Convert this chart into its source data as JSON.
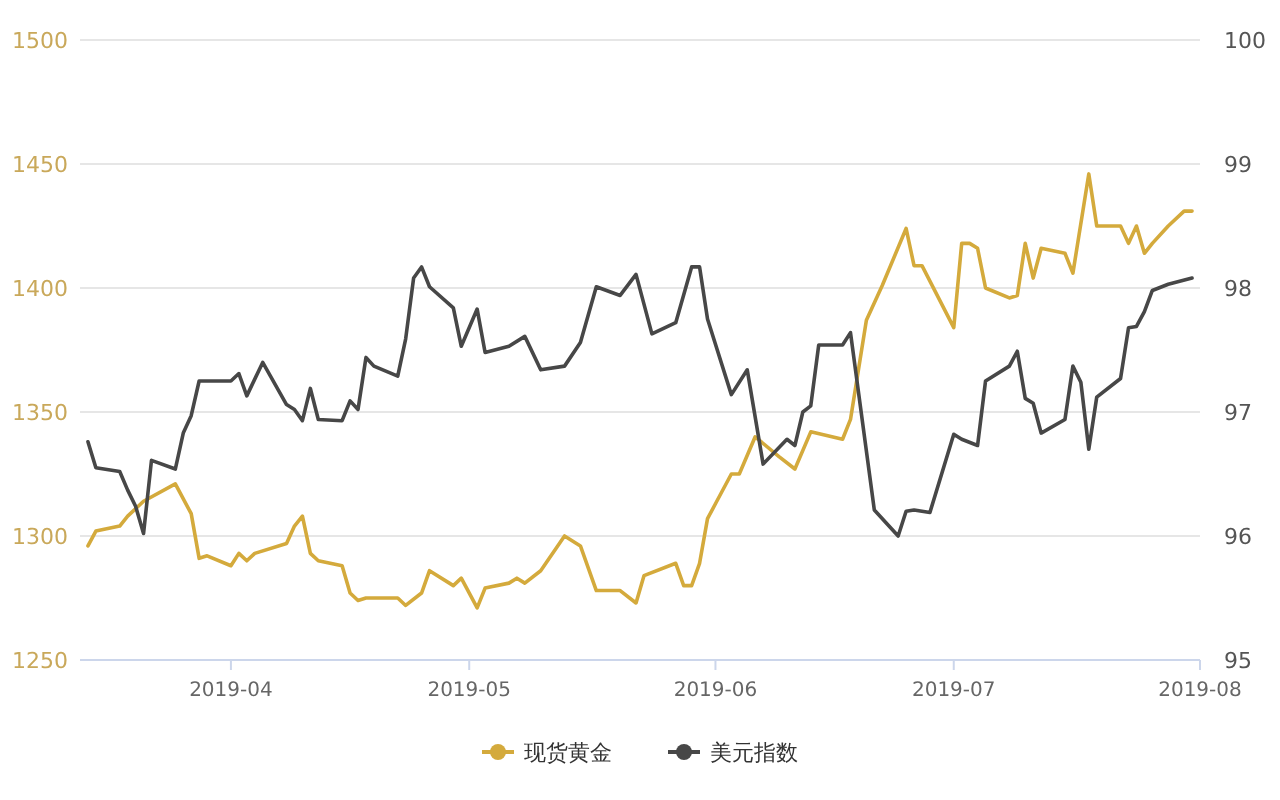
{
  "chart_data": {
    "type": "line",
    "xlim": [
      "2019-03-13",
      "2019-08-01"
    ],
    "xticks": [
      {
        "value": "2019-04-01",
        "label": "2019-04"
      },
      {
        "value": "2019-05-01",
        "label": "2019-05"
      },
      {
        "value": "2019-06-01",
        "label": "2019-06"
      },
      {
        "value": "2019-07-01",
        "label": "2019-07"
      },
      {
        "value": "2019-08-01",
        "label": "2019-08"
      }
    ],
    "ylim": [
      1250,
      1500
    ],
    "yticks": [
      1250,
      1300,
      1350,
      1400,
      1450,
      1500
    ],
    "y2lim": [
      95,
      100
    ],
    "y2ticks": [
      95,
      96,
      97,
      98,
      99,
      100
    ],
    "grid": "y",
    "legend": "bottom",
    "series": [
      {
        "name": "现货黄金",
        "color": "#d4aa3c",
        "x": [
          "2019-03-14",
          "2019-03-15",
          "2019-03-18",
          "2019-03-19",
          "2019-03-21",
          "2019-03-25",
          "2019-03-27",
          "2019-03-28",
          "2019-03-29",
          "2019-04-01",
          "2019-04-02",
          "2019-04-03",
          "2019-04-04",
          "2019-04-08",
          "2019-04-09",
          "2019-04-10",
          "2019-04-11",
          "2019-04-12",
          "2019-04-15",
          "2019-04-16",
          "2019-04-17",
          "2019-04-18",
          "2019-04-22",
          "2019-04-23",
          "2019-04-25",
          "2019-04-26",
          "2019-04-29",
          "2019-04-30",
          "2019-05-02",
          "2019-05-03",
          "2019-05-06",
          "2019-05-07",
          "2019-05-08",
          "2019-05-10",
          "2019-05-13",
          "2019-05-15",
          "2019-05-17",
          "2019-05-20",
          "2019-05-22",
          "2019-05-23",
          "2019-05-27",
          "2019-05-28",
          "2019-05-29",
          "2019-05-30",
          "2019-05-31",
          "2019-06-01",
          "2019-06-03",
          "2019-06-04",
          "2019-06-06",
          "2019-06-09",
          "2019-06-11",
          "2019-06-13",
          "2019-06-17",
          "2019-06-18",
          "2019-06-20",
          "2019-06-22",
          "2019-06-25",
          "2019-06-26",
          "2019-06-27",
          "2019-07-01",
          "2019-07-02",
          "2019-07-03",
          "2019-07-04",
          "2019-07-05",
          "2019-07-08",
          "2019-07-09",
          "2019-07-10",
          "2019-07-11",
          "2019-07-12",
          "2019-07-15",
          "2019-07-16",
          "2019-07-18",
          "2019-07-19",
          "2019-07-22",
          "2019-07-23",
          "2019-07-24",
          "2019-07-25",
          "2019-07-26",
          "2019-07-28",
          "2019-07-30",
          "2019-07-31"
        ],
        "values": [
          1296,
          1302,
          1304,
          1308,
          1314,
          1321,
          1309,
          1291,
          1292,
          1288,
          1293,
          1290,
          1293,
          1297,
          1304,
          1308,
          1293,
          1290,
          1288,
          1277,
          1274,
          1275,
          1275,
          1272,
          1277,
          1286,
          1280,
          1283,
          1271,
          1279,
          1281,
          1283,
          1281,
          1286,
          1300,
          1296,
          1278,
          1278,
          1273,
          1284,
          1289,
          1280,
          1280,
          1289,
          1307,
          1313,
          1325,
          1325,
          1340,
          1332,
          1327,
          1342,
          1339,
          1347,
          1387,
          1401,
          1424,
          1409,
          1409,
          1384,
          1418,
          1418,
          1416,
          1400,
          1396,
          1397,
          1418,
          1404,
          1416,
          1414,
          1406,
          1446,
          1425,
          1425,
          1418,
          1425,
          1414,
          1418,
          1425,
          1431,
          1431
        ]
      },
      {
        "name": "美元指数",
        "color": "#474747",
        "axis": "y2",
        "x": [
          "2019-03-14",
          "2019-03-15",
          "2019-03-18",
          "2019-03-19",
          "2019-03-20",
          "2019-03-21",
          "2019-03-22",
          "2019-03-25",
          "2019-03-26",
          "2019-03-27",
          "2019-03-28",
          "2019-04-01",
          "2019-04-02",
          "2019-04-03",
          "2019-04-05",
          "2019-04-08",
          "2019-04-09",
          "2019-04-10",
          "2019-04-11",
          "2019-04-12",
          "2019-04-15",
          "2019-04-16",
          "2019-04-17",
          "2019-04-18",
          "2019-04-19",
          "2019-04-22",
          "2019-04-23",
          "2019-04-24",
          "2019-04-25",
          "2019-04-26",
          "2019-04-29",
          "2019-04-30",
          "2019-05-02",
          "2019-05-03",
          "2019-05-06",
          "2019-05-08",
          "2019-05-10",
          "2019-05-13",
          "2019-05-15",
          "2019-05-17",
          "2019-05-20",
          "2019-05-22",
          "2019-05-24",
          "2019-05-27",
          "2019-05-29",
          "2019-05-30",
          "2019-05-31",
          "2019-06-03",
          "2019-06-05",
          "2019-06-07",
          "2019-06-10",
          "2019-06-11",
          "2019-06-12",
          "2019-06-13",
          "2019-06-14",
          "2019-06-17",
          "2019-06-18",
          "2019-06-21",
          "2019-06-24",
          "2019-06-25",
          "2019-06-26",
          "2019-06-28",
          "2019-07-01",
          "2019-07-02",
          "2019-07-04",
          "2019-07-05",
          "2019-07-08",
          "2019-07-09",
          "2019-07-10",
          "2019-07-11",
          "2019-07-12",
          "2019-07-15",
          "2019-07-16",
          "2019-07-17",
          "2019-07-18",
          "2019-07-19",
          "2019-07-22",
          "2019-07-23",
          "2019-07-24",
          "2019-07-25",
          "2019-07-26",
          "2019-07-28",
          "2019-07-31"
        ],
        "values": [
          96.76,
          96.55,
          96.52,
          96.37,
          96.24,
          96.02,
          96.61,
          96.54,
          96.83,
          96.97,
          97.25,
          97.25,
          97.31,
          97.13,
          97.4,
          97.06,
          97.02,
          96.93,
          97.19,
          96.94,
          96.93,
          97.09,
          97.02,
          97.44,
          97.37,
          97.29,
          97.59,
          98.08,
          98.17,
          98.01,
          97.84,
          97.53,
          97.83,
          97.48,
          97.53,
          97.61,
          97.34,
          97.37,
          97.56,
          98.01,
          97.94,
          98.11,
          97.63,
          97.72,
          98.17,
          98.17,
          97.75,
          97.14,
          97.34,
          96.58,
          96.78,
          96.73,
          97.0,
          97.05,
          97.54,
          97.54,
          97.64,
          96.21,
          96.0,
          96.2,
          96.21,
          96.19,
          96.82,
          96.78,
          96.73,
          97.25,
          97.37,
          97.49,
          97.11,
          97.07,
          96.83,
          96.94,
          97.37,
          97.24,
          96.7,
          97.12,
          97.27,
          97.68,
          97.69,
          97.81,
          97.98,
          98.03,
          98.08
        ]
      }
    ]
  }
}
